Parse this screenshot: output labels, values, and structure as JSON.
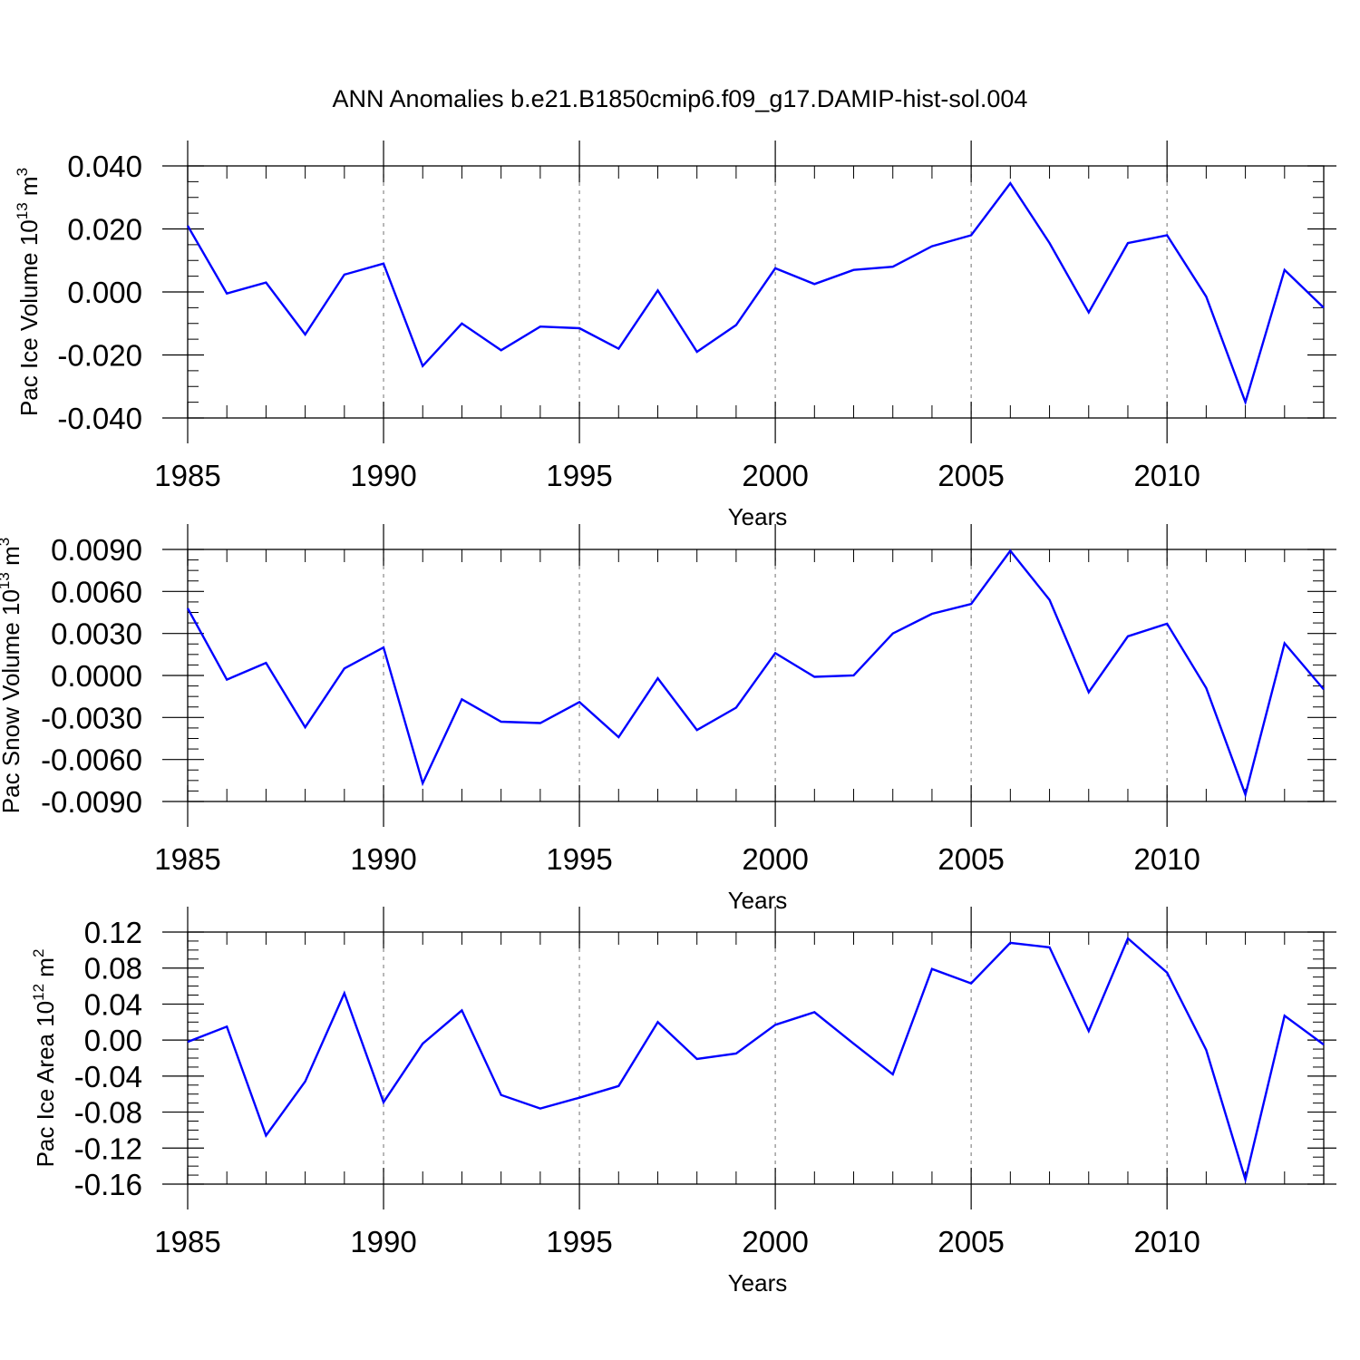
{
  "title": "ANN Anomalies b.e21.B1850cmip6.f09_g17.DAMIP-hist-sol.004",
  "chart_data": [
    {
      "type": "line",
      "xlabel": "Years",
      "ylabel": {
        "text": "Pac Ice Volume 10",
        "exp": "13",
        "unit": " m",
        "unit_exp": "3"
      },
      "xlim": [
        1985,
        2014
      ],
      "ylim": [
        -0.04,
        0.04
      ],
      "xticks": [
        1985,
        1990,
        1995,
        2000,
        2005,
        2010
      ],
      "xtick_labels": [
        "1985",
        "1990",
        "1995",
        "2000",
        "2005",
        "2010"
      ],
      "yticks": [
        0.04,
        0.02,
        0.0,
        -0.02,
        -0.04
      ],
      "ytick_labels": [
        "0.040",
        "0.020",
        "0.000",
        "-0.020",
        "-0.040"
      ],
      "grid": "vertical dashed at labeled years",
      "color": "#0000ff",
      "x": [
        1985,
        1986,
        1987,
        1988,
        1989,
        1990,
        1991,
        1992,
        1993,
        1994,
        1995,
        1996,
        1997,
        1998,
        1999,
        2000,
        2001,
        2002,
        2003,
        2004,
        2005,
        2006,
        2007,
        2008,
        2009,
        2010,
        2011,
        2012,
        2013,
        2014
      ],
      "values": [
        0.021,
        -0.0005,
        0.003,
        -0.0135,
        0.0055,
        0.009,
        -0.0235,
        -0.01,
        -0.0185,
        -0.011,
        -0.0115,
        -0.018,
        0.0005,
        -0.019,
        -0.0105,
        0.0075,
        0.0025,
        0.007,
        0.008,
        0.0145,
        0.018,
        0.0345,
        0.0155,
        -0.0065,
        0.0155,
        0.018,
        -0.0015,
        -0.035,
        0.007,
        -0.005
      ]
    },
    {
      "type": "line",
      "xlabel": "Years",
      "ylabel": {
        "text": "Pac Snow Volume 10",
        "exp": "13",
        "unit": " m",
        "unit_exp": "3"
      },
      "xlim": [
        1985,
        2014
      ],
      "ylim": [
        -0.009,
        0.009
      ],
      "xticks": [
        1985,
        1990,
        1995,
        2000,
        2005,
        2010
      ],
      "xtick_labels": [
        "1985",
        "1990",
        "1995",
        "2000",
        "2005",
        "2010"
      ],
      "yticks": [
        0.009,
        0.006,
        0.003,
        0.0,
        -0.003,
        -0.006,
        -0.009
      ],
      "ytick_labels": [
        "0.0090",
        "0.0060",
        "0.0030",
        "0.0000",
        "-0.0030",
        "-0.0060",
        "-0.0090"
      ],
      "grid": "vertical dashed at labeled years",
      "color": "#0000ff",
      "x": [
        1985,
        1986,
        1987,
        1988,
        1989,
        1990,
        1991,
        1992,
        1993,
        1994,
        1995,
        1996,
        1997,
        1998,
        1999,
        2000,
        2001,
        2002,
        2003,
        2004,
        2005,
        2006,
        2007,
        2008,
        2009,
        2010,
        2011,
        2012,
        2013,
        2014
      ],
      "values": [
        0.0048,
        -0.0003,
        0.0009,
        -0.0037,
        0.0005,
        0.002,
        -0.0077,
        -0.0017,
        -0.0033,
        -0.0034,
        -0.0019,
        -0.0044,
        -0.0002,
        -0.0039,
        -0.0023,
        0.0016,
        -0.0001,
        0.0,
        0.003,
        0.0044,
        0.0051,
        0.0089,
        0.0054,
        -0.0012,
        0.0028,
        0.0037,
        -0.0009,
        -0.0085,
        0.0023,
        -0.001
      ]
    },
    {
      "type": "line",
      "xlabel": "Years",
      "ylabel": {
        "text": "Pac Ice Area 10",
        "exp": "12",
        "unit": " m",
        "unit_exp": "2"
      },
      "xlim": [
        1985,
        2014
      ],
      "ylim": [
        -0.16,
        0.12
      ],
      "xticks": [
        1985,
        1990,
        1995,
        2000,
        2005,
        2010
      ],
      "xtick_labels": [
        "1985",
        "1990",
        "1995",
        "2000",
        "2005",
        "2010"
      ],
      "yticks": [
        0.12,
        0.08,
        0.04,
        0.0,
        -0.04,
        -0.08,
        -0.12,
        -0.16
      ],
      "ytick_labels": [
        "0.12",
        "0.08",
        "0.04",
        "0.00",
        "-0.04",
        "-0.08",
        "-0.12",
        "-0.16"
      ],
      "grid": "vertical dashed at labeled years",
      "color": "#0000ff",
      "x": [
        1985,
        1986,
        1987,
        1988,
        1989,
        1990,
        1991,
        1992,
        1993,
        1994,
        1995,
        1996,
        1997,
        1998,
        1999,
        2000,
        2001,
        2002,
        2003,
        2004,
        2005,
        2006,
        2007,
        2008,
        2009,
        2010,
        2011,
        2012,
        2013,
        2014
      ],
      "values": [
        -0.002,
        0.015,
        -0.106,
        -0.046,
        0.052,
        -0.069,
        -0.004,
        0.033,
        -0.061,
        -0.076,
        -0.064,
        -0.051,
        0.02,
        -0.021,
        -0.015,
        0.017,
        0.031,
        -0.004,
        -0.038,
        0.079,
        0.063,
        0.108,
        0.103,
        0.01,
        0.113,
        0.075,
        -0.011,
        -0.155,
        0.027,
        -0.005
      ]
    }
  ]
}
